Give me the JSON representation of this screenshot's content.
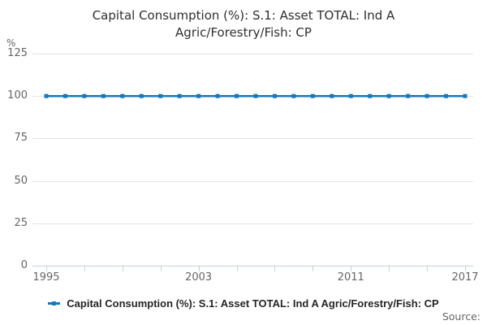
{
  "title": "Capital Consumption (%): S.1: Asset TOTAL: Ind A Agric/Forestry/Fish: CP",
  "source_label": "Source:",
  "y_axis": {
    "unit": "%",
    "ticks": [
      0,
      25,
      50,
      75,
      100,
      125
    ]
  },
  "x_axis": {
    "tick_years": [
      1995,
      1997,
      1999,
      2001,
      2003,
      2005,
      2007,
      2009,
      2011,
      2013,
      2015,
      2017
    ],
    "labels": [
      "1995",
      "2003",
      "2011",
      "2017"
    ]
  },
  "legend": {
    "label": "Capital Consumption (%): S.1: Asset TOTAL: Ind A Agric/Forestry/Fish: CP"
  },
  "colors": {
    "line": "#1379bd",
    "grid": "#e4e4e4",
    "axis": "#c5cede",
    "title_text": "#2f2f2f",
    "label_text": "#666666",
    "legend_text": "#262626"
  },
  "chart_data": {
    "type": "line",
    "title": "Capital Consumption (%): S.1: Asset TOTAL: Ind A Agric/Forestry/Fish: CP",
    "xlabel": "",
    "ylabel": "%",
    "ylim": [
      0,
      125
    ],
    "xlim": [
      1995,
      2017
    ],
    "grid": true,
    "legend_position": "bottom",
    "x": [
      1995,
      1996,
      1997,
      1998,
      1999,
      2000,
      2001,
      2002,
      2003,
      2004,
      2005,
      2006,
      2007,
      2008,
      2009,
      2010,
      2011,
      2012,
      2013,
      2014,
      2015,
      2016,
      2017
    ],
    "series": [
      {
        "name": "Capital Consumption (%): S.1: Asset TOTAL: Ind A Agric/Forestry/Fish: CP",
        "values": [
          100,
          100,
          100,
          100,
          100,
          100,
          100,
          100,
          100,
          100,
          100,
          100,
          100,
          100,
          100,
          100,
          100,
          100,
          100,
          100,
          100,
          100,
          100
        ]
      }
    ]
  }
}
